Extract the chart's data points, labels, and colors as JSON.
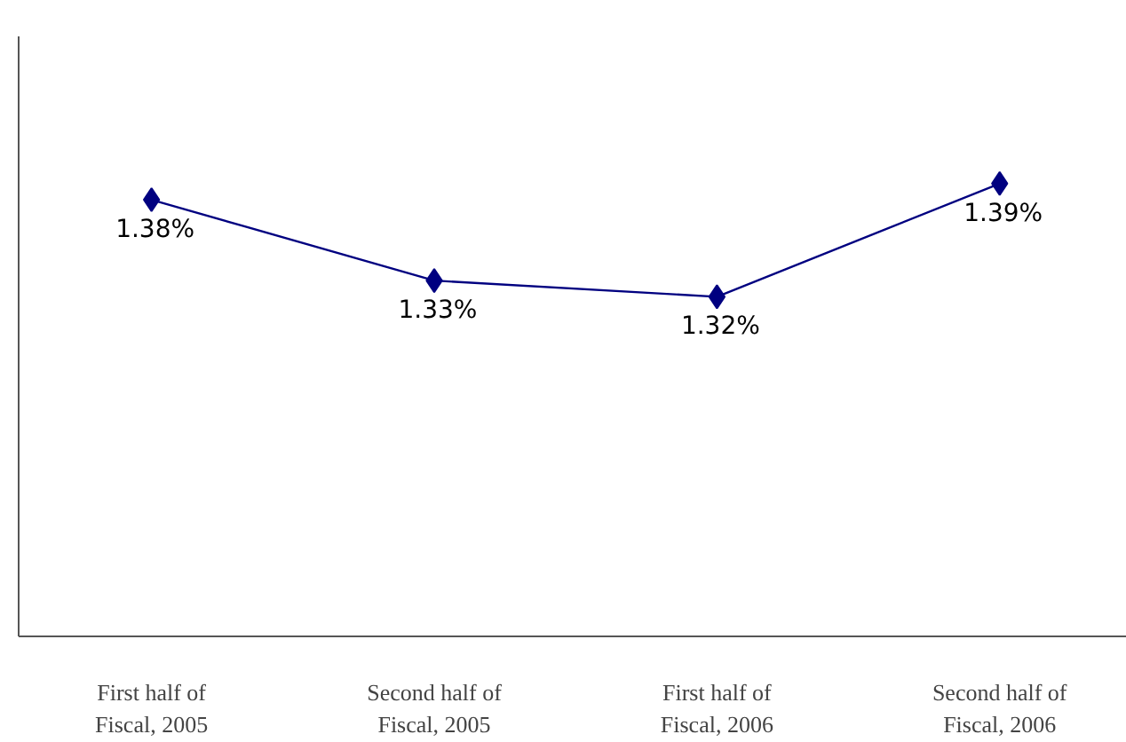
{
  "chart_data": {
    "type": "line",
    "categories": [
      "First half of\nFiscal, 2005",
      "Second half of\nFiscal, 2005",
      "First half of\nFiscal, 2006",
      "Second half of\nFiscal, 2006"
    ],
    "series": [
      {
        "color": "#000080",
        "values": [
          1.38,
          1.33,
          1.32,
          1.39
        ],
        "value_labels": [
          "1.38%",
          "1.33%",
          "1.32%",
          "1.39%"
        ]
      }
    ],
    "tick_labels": "x",
    "marker": "diamond",
    "line_style": "solid"
  }
}
